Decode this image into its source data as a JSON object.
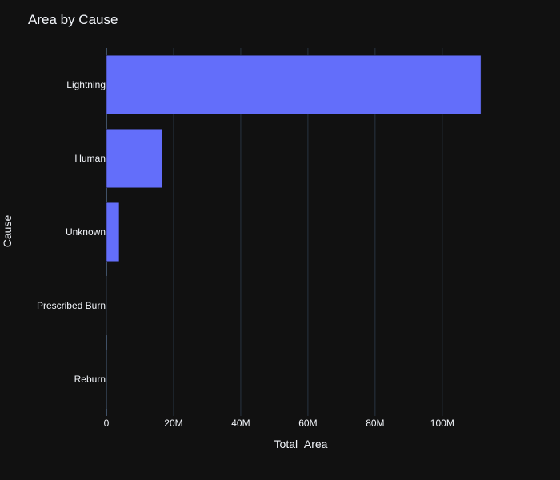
{
  "chart_data": {
    "type": "bar",
    "orientation": "horizontal",
    "title": "Area by Cause",
    "xlabel": "Total_Area",
    "ylabel": "Cause",
    "categories": [
      "Lightning",
      "Human",
      "Unknown",
      "Prescribed Burn",
      "Reburn"
    ],
    "values": [
      111500000,
      16500000,
      3800000,
      60000,
      10000
    ],
    "xlim": [
      0,
      116000000
    ],
    "xticks": [
      0,
      20000000,
      40000000,
      60000000,
      80000000,
      100000000
    ],
    "xtick_labels": [
      "0",
      "20M",
      "40M",
      "60M",
      "80M",
      "100M"
    ],
    "grid": true,
    "colors": {
      "background": "#111111",
      "bar": "#636efa",
      "grid": "#283442",
      "text": "#f2f5fa"
    }
  }
}
